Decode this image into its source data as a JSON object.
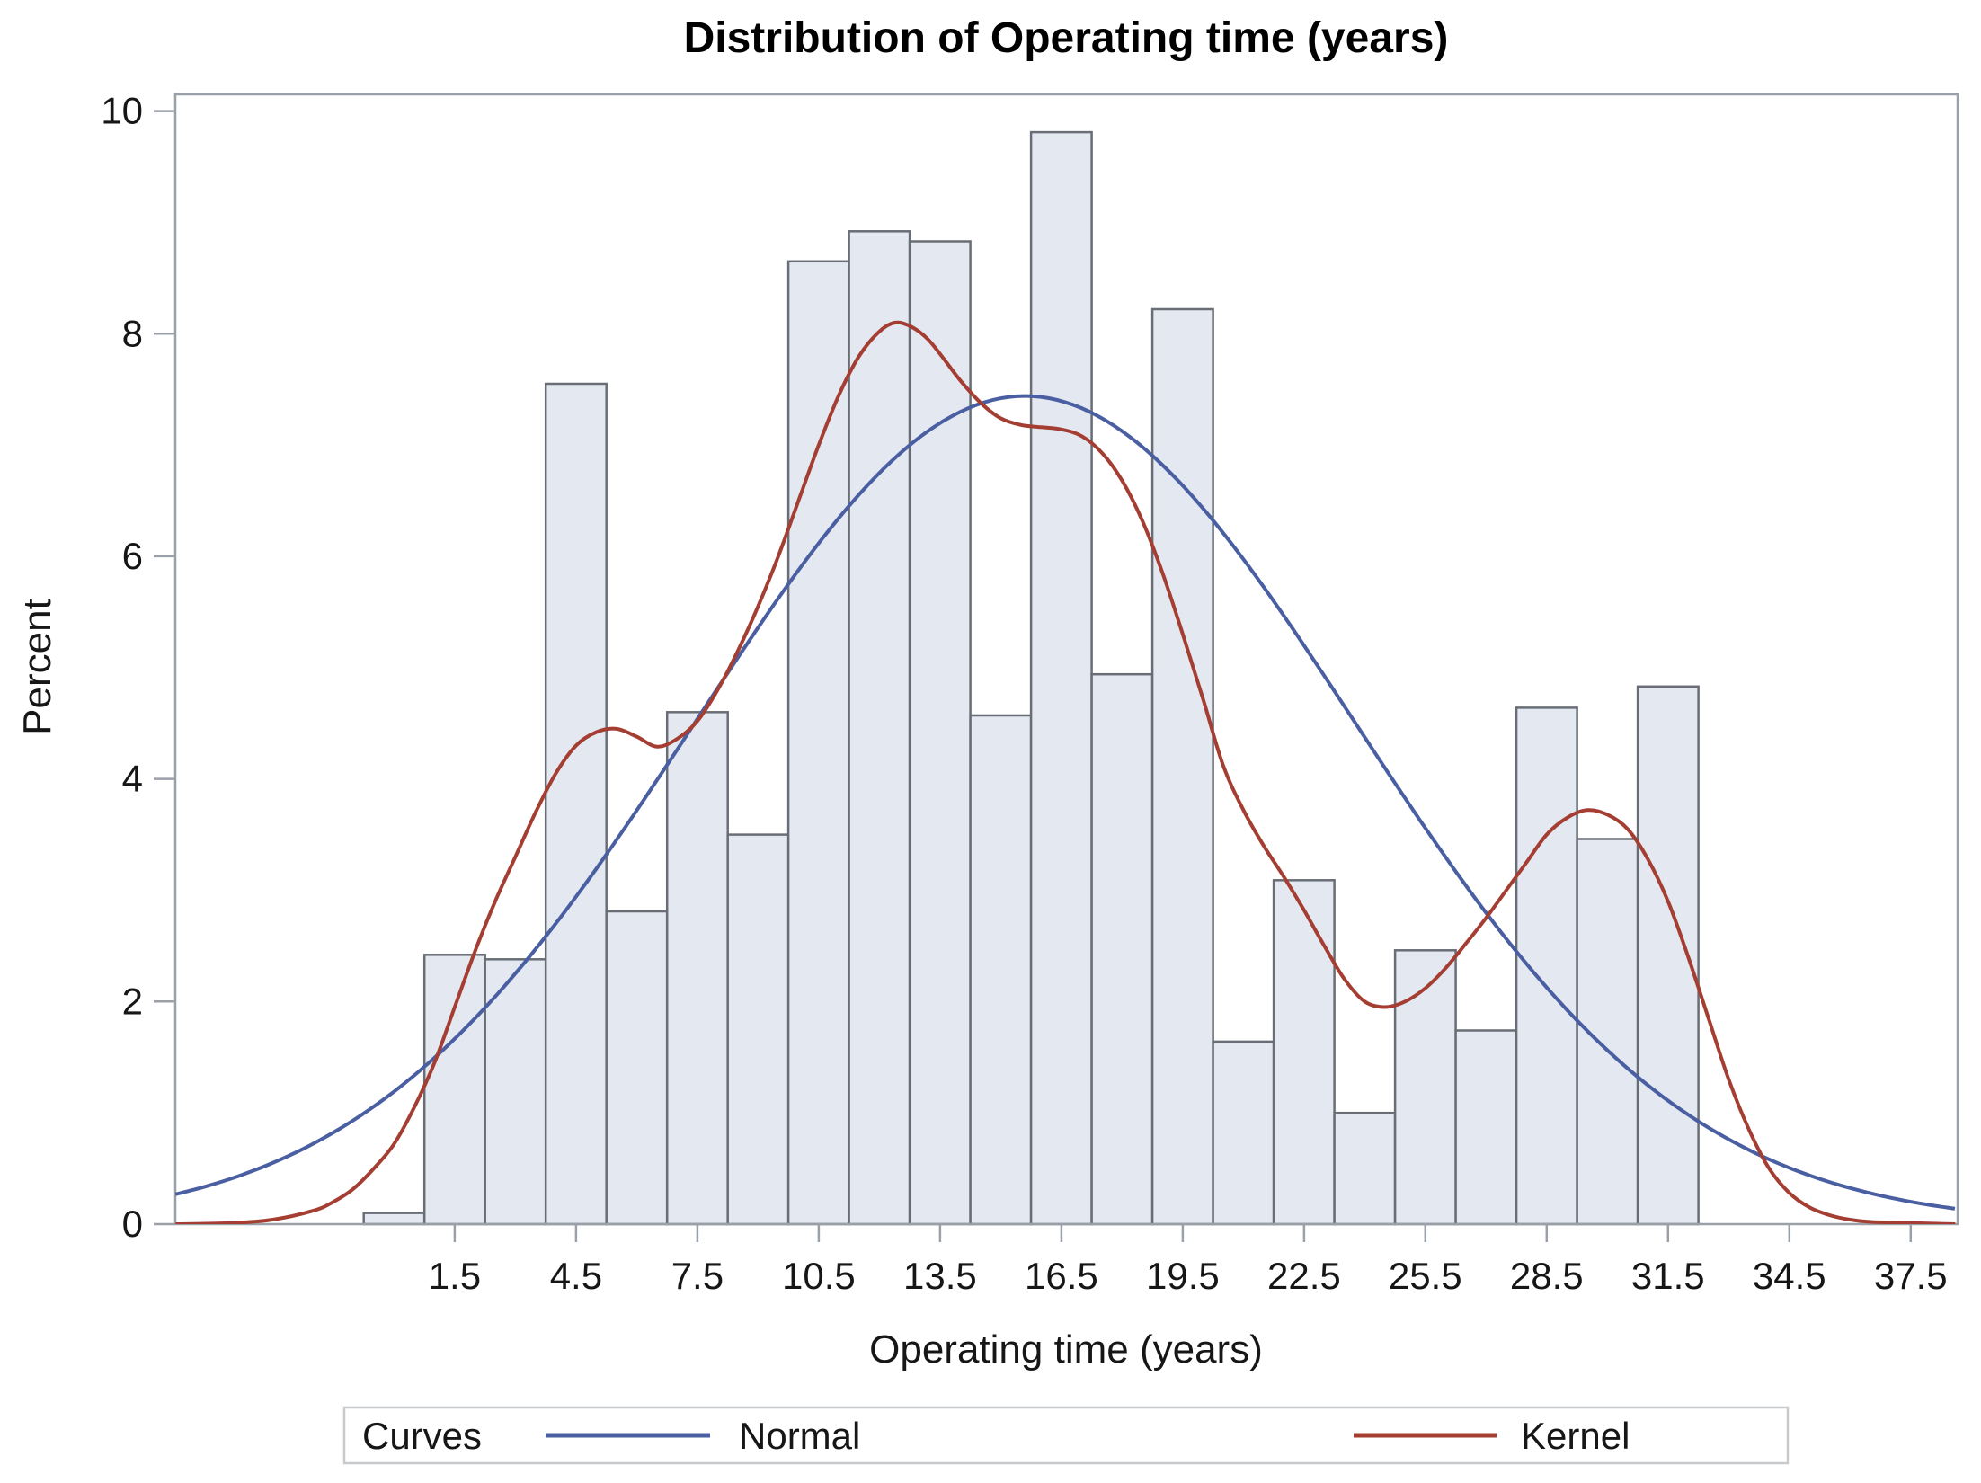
{
  "colors": {
    "background": "#ffffff",
    "bar_fill": "#e4e8f1",
    "bar_stroke": "#696e76",
    "frame": "#9aa0a7",
    "tick": "#9aa0a7",
    "normal_curve": "#4a5fa2",
    "kernel_curve": "#a53e32",
    "legend_border": "#c7c9cc"
  },
  "chart_data": {
    "type": "histogram",
    "title": "Distribution of Operating time (years)",
    "xlabel": "Operating time (years)",
    "ylabel": "Percent",
    "xlim": [
      -5.41,
      38.66
    ],
    "ylim": [
      0,
      10.15
    ],
    "grid": false,
    "bin_width": 1.5,
    "x_tick_values": [
      1.5,
      4.5,
      7.5,
      10.5,
      13.5,
      16.5,
      19.5,
      22.5,
      25.5,
      28.5,
      31.5,
      34.5,
      37.5
    ],
    "x_tick_labels": [
      "1.5",
      "4.5",
      "7.5",
      "10.5",
      "13.5",
      "16.5",
      "19.5",
      "22.5",
      "25.5",
      "28.5",
      "31.5",
      "34.5",
      "37.5"
    ],
    "y_tick_values": [
      0,
      2,
      4,
      6,
      8,
      10
    ],
    "y_tick_labels": [
      "0",
      "2",
      "4",
      "6",
      "8",
      "10"
    ],
    "bars": {
      "midpoints": [
        0,
        1.5,
        3,
        4.5,
        6,
        7.5,
        9,
        10.5,
        12,
        13.5,
        15,
        16.5,
        18,
        19.5,
        21,
        22.5,
        24,
        25.5,
        27,
        28.5,
        30,
        31.5
      ],
      "percents": [
        0.1,
        2.42,
        2.38,
        7.55,
        2.81,
        4.6,
        3.5,
        8.65,
        8.92,
        8.83,
        4.57,
        9.81,
        4.94,
        8.22,
        1.64,
        3.09,
        1.0,
        2.46,
        1.74,
        4.64,
        3.46,
        4.83
      ]
    },
    "series": [
      {
        "name": "Normal",
        "type": "normal_density",
        "mean": 15.6,
        "sigma": 8.15,
        "peak_percent": 7.44
      },
      {
        "name": "Kernel",
        "type": "kernel_density",
        "points": [
          [
            -5.4,
            0.0
          ],
          [
            -4,
            0.01
          ],
          [
            -3,
            0.04
          ],
          [
            -2,
            0.12
          ],
          [
            -1.5,
            0.2
          ],
          [
            -1,
            0.32
          ],
          [
            -0.5,
            0.5
          ],
          [
            0,
            0.72
          ],
          [
            0.5,
            1.05
          ],
          [
            1,
            1.45
          ],
          [
            1.5,
            1.95
          ],
          [
            2,
            2.45
          ],
          [
            2.5,
            2.9
          ],
          [
            3,
            3.3
          ],
          [
            3.5,
            3.7
          ],
          [
            4,
            4.05
          ],
          [
            4.5,
            4.3
          ],
          [
            5,
            4.42
          ],
          [
            5.5,
            4.45
          ],
          [
            6,
            4.38
          ],
          [
            6.5,
            4.29
          ],
          [
            7,
            4.36
          ],
          [
            7.5,
            4.52
          ],
          [
            8,
            4.8
          ],
          [
            8.5,
            5.15
          ],
          [
            9,
            5.55
          ],
          [
            9.5,
            6.0
          ],
          [
            10,
            6.5
          ],
          [
            10.5,
            7.0
          ],
          [
            11,
            7.45
          ],
          [
            11.5,
            7.8
          ],
          [
            12,
            8.02
          ],
          [
            12.4,
            8.1
          ],
          [
            12.8,
            8.06
          ],
          [
            13.2,
            7.95
          ],
          [
            13.6,
            7.77
          ],
          [
            14,
            7.58
          ],
          [
            14.5,
            7.38
          ],
          [
            15,
            7.24
          ],
          [
            15.5,
            7.18
          ],
          [
            16,
            7.16
          ],
          [
            16.5,
            7.14
          ],
          [
            17,
            7.08
          ],
          [
            17.5,
            6.93
          ],
          [
            18,
            6.68
          ],
          [
            18.5,
            6.32
          ],
          [
            19,
            5.85
          ],
          [
            19.5,
            5.3
          ],
          [
            20,
            4.72
          ],
          [
            20.5,
            4.12
          ],
          [
            21,
            3.72
          ],
          [
            21.5,
            3.4
          ],
          [
            22,
            3.12
          ],
          [
            22.5,
            2.82
          ],
          [
            23,
            2.5
          ],
          [
            23.5,
            2.2
          ],
          [
            24,
            2.0
          ],
          [
            24.5,
            1.95
          ],
          [
            25,
            2.0
          ],
          [
            25.5,
            2.12
          ],
          [
            26,
            2.3
          ],
          [
            26.5,
            2.52
          ],
          [
            27,
            2.75
          ],
          [
            27.5,
            3.0
          ],
          [
            28,
            3.25
          ],
          [
            28.5,
            3.5
          ],
          [
            29,
            3.65
          ],
          [
            29.5,
            3.72
          ],
          [
            30,
            3.68
          ],
          [
            30.5,
            3.55
          ],
          [
            31,
            3.28
          ],
          [
            31.5,
            2.9
          ],
          [
            32,
            2.4
          ],
          [
            32.5,
            1.85
          ],
          [
            33,
            1.3
          ],
          [
            33.5,
            0.85
          ],
          [
            34,
            0.5
          ],
          [
            34.5,
            0.28
          ],
          [
            35,
            0.15
          ],
          [
            35.5,
            0.08
          ],
          [
            36,
            0.04
          ],
          [
            36.5,
            0.02
          ],
          [
            37.5,
            0.01
          ],
          [
            38.6,
            0.0
          ]
        ]
      }
    ],
    "legend": {
      "title": "Curves",
      "position": "bottom",
      "entries": [
        {
          "label": "Normal"
        },
        {
          "label": "Kernel"
        }
      ]
    }
  }
}
